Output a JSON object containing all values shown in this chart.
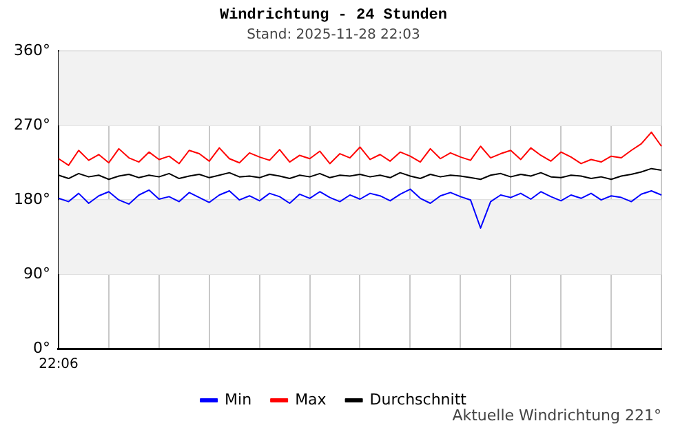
{
  "chart_data": {
    "type": "line",
    "title": "Windrichtung - 24 Stunden",
    "subtitle": "Stand: 2025-11-28 22:03",
    "categories": [
      null,
      null,
      null,
      null,
      null,
      null,
      null,
      null,
      null,
      null,
      null,
      null,
      null,
      null,
      null,
      null,
      null,
      null,
      null,
      null,
      null,
      null,
      null,
      null,
      null,
      null,
      null,
      null,
      null,
      null,
      null,
      null,
      null,
      null,
      null,
      null,
      null,
      null,
      null,
      null,
      null,
      null,
      null,
      null,
      null,
      null,
      null,
      null,
      null,
      null,
      null,
      null,
      null,
      null,
      null,
      null,
      null,
      null,
      null,
      null,
      null
    ],
    "series": [
      {
        "name": "Min",
        "color": "#0000ff",
        "values": [
          182,
          178,
          188,
          176,
          185,
          190,
          180,
          175,
          186,
          192,
          181,
          184,
          178,
          189,
          183,
          177,
          186,
          191,
          180,
          185,
          179,
          188,
          184,
          176,
          187,
          182,
          190,
          183,
          178,
          186,
          181,
          188,
          185,
          179,
          187,
          193,
          182,
          176,
          185,
          189,
          184,
          180,
          146,
          178,
          186,
          183,
          188,
          181,
          190,
          184,
          179,
          186,
          182,
          188,
          180,
          185,
          183,
          178,
          187,
          191,
          186
        ]
      },
      {
        "name": "Max",
        "color": "#ff0000",
        "values": [
          230,
          222,
          240,
          228,
          235,
          225,
          242,
          231,
          226,
          238,
          229,
          233,
          224,
          240,
          236,
          227,
          243,
          230,
          225,
          237,
          232,
          228,
          241,
          226,
          234,
          230,
          239,
          224,
          236,
          231,
          244,
          229,
          235,
          227,
          238,
          233,
          226,
          242,
          230,
          237,
          232,
          228,
          245,
          231,
          236,
          240,
          229,
          243,
          234,
          227,
          238,
          232,
          224,
          229,
          226,
          233,
          231,
          240,
          248,
          262,
          245
        ]
      },
      {
        "name": "Durchschnitt",
        "color": "#000000",
        "values": [
          210,
          206,
          212,
          208,
          210,
          205,
          209,
          211,
          207,
          210,
          208,
          212,
          206,
          209,
          211,
          207,
          210,
          213,
          208,
          209,
          207,
          211,
          209,
          206,
          210,
          208,
          212,
          207,
          210,
          209,
          211,
          208,
          210,
          207,
          213,
          209,
          206,
          211,
          208,
          210,
          209,
          207,
          205,
          210,
          212,
          208,
          211,
          209,
          213,
          208,
          207,
          210,
          209,
          206,
          208,
          205,
          209,
          211,
          214,
          218,
          216
        ]
      }
    ],
    "ylim": [
      0,
      360
    ],
    "yticks": [
      {
        "value": 0,
        "label": "0°"
      },
      {
        "value": 90,
        "label": "90°"
      },
      {
        "value": 180,
        "label": "180°"
      },
      {
        "value": 270,
        "label": "270°"
      },
      {
        "value": 360,
        "label": "360°"
      }
    ],
    "bands": [
      {
        "axis": "y",
        "from": 270,
        "to": 360,
        "color": "#f2f2f2"
      },
      {
        "axis": "y",
        "from": 90,
        "to": 180,
        "color": "#f2f2f2"
      }
    ],
    "grid": true,
    "legend": "bottom",
    "marker": "none",
    "line_style": "solid",
    "annotations": [
      "22:06",
      "Aktuelle Windrichtung 221°"
    ]
  }
}
